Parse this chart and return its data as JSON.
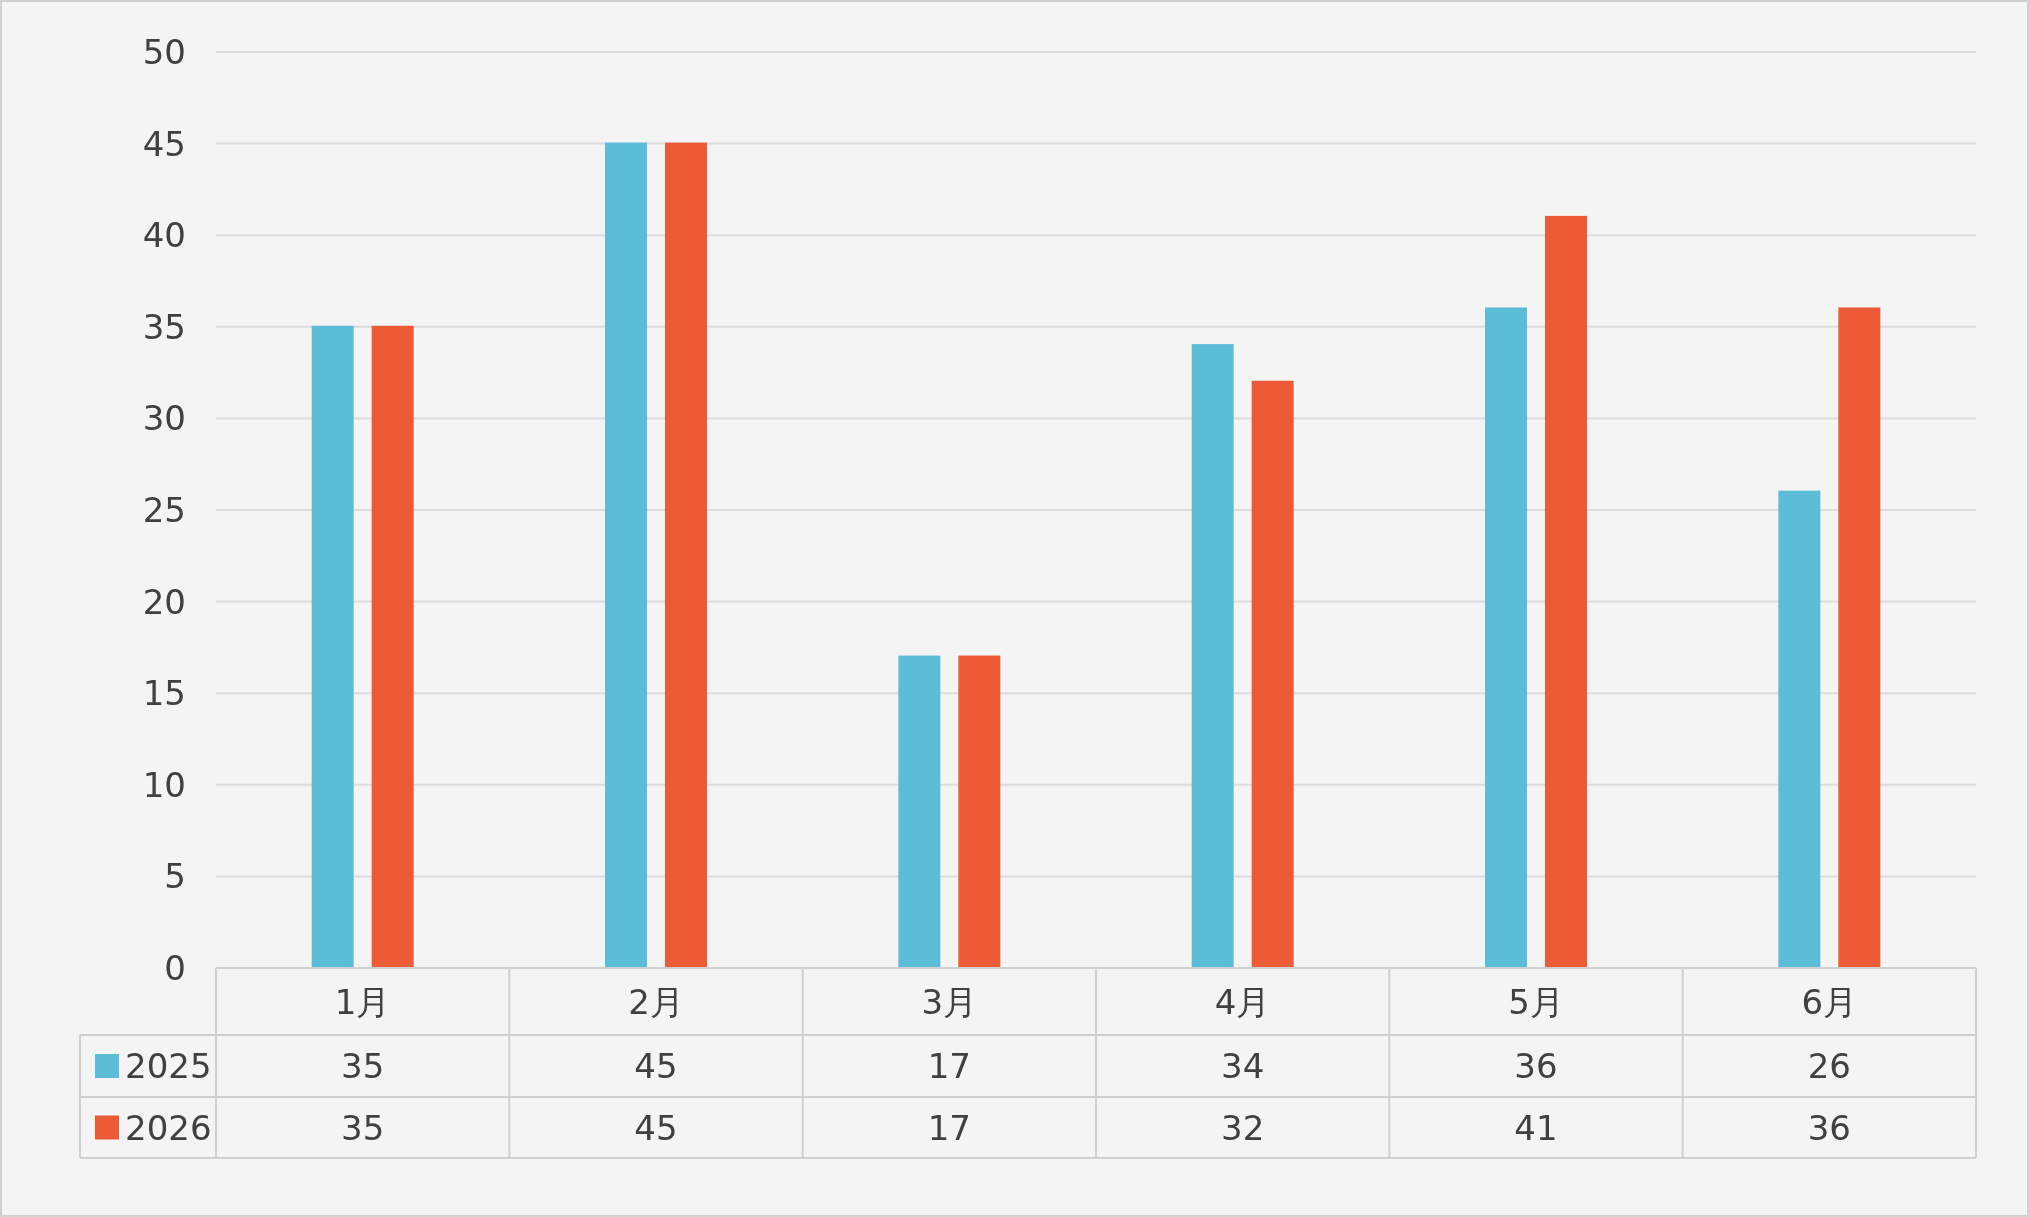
{
  "chart_data": {
    "type": "bar",
    "categories": [
      "1月",
      "2月",
      "3月",
      "4月",
      "5月",
      "6月"
    ],
    "series": [
      {
        "name": "2025",
        "color": "#5bbdd8",
        "values": [
          35,
          45,
          17,
          34,
          36,
          26
        ]
      },
      {
        "name": "2026",
        "color": "#ec5a36",
        "values": [
          35,
          45,
          17,
          32,
          41,
          36
        ]
      }
    ],
    "ylim": [
      0,
      50
    ],
    "yticks": [
      0,
      5,
      10,
      15,
      20,
      25,
      30,
      35,
      40,
      45,
      50
    ],
    "grid": "y",
    "data_labels": true,
    "legend": "bottom"
  }
}
